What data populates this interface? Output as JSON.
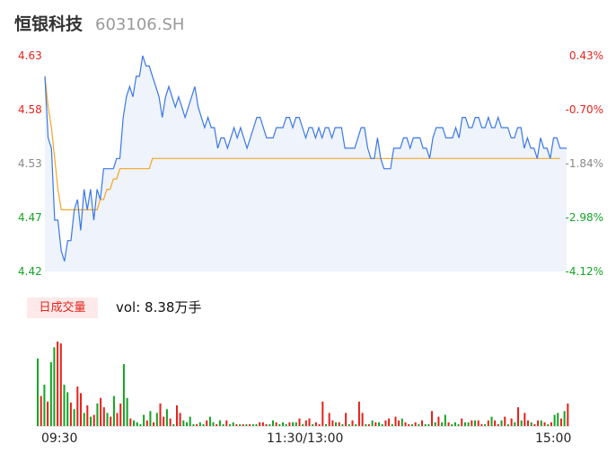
{
  "header": {
    "name": "恒银科技",
    "code": "603106.SH"
  },
  "volume_header": {
    "tag": "日成交量",
    "prefix": "vol: ",
    "value": "8.38万手"
  },
  "colors": {
    "up": "#e5231c",
    "down": "#16a326",
    "price_line": "#3b78e7",
    "avg_line": "#f5a623",
    "fill": "#eef3fc",
    "neutral": "#888888"
  },
  "chart_data": [
    {
      "type": "line",
      "series": [
        {
          "key": "price",
          "values": [
            4.61,
            4.55,
            4.54,
            4.47,
            4.47,
            4.44,
            4.43,
            4.45,
            4.45,
            4.48,
            4.49,
            4.46,
            4.5,
            4.48,
            4.5,
            4.47,
            4.5,
            4.49,
            4.52,
            4.52,
            4.52,
            4.52,
            4.53,
            4.53,
            4.57,
            4.59,
            4.6,
            4.59,
            4.61,
            4.61,
            4.63,
            4.62,
            4.62,
            4.61,
            4.6,
            4.59,
            4.57,
            4.59,
            4.6,
            4.59,
            4.58,
            4.59,
            4.58,
            4.57,
            4.58,
            4.59,
            4.6,
            4.58,
            4.57,
            4.56,
            4.57,
            4.56,
            4.56,
            4.54,
            4.55,
            4.55,
            4.54,
            4.55,
            4.56,
            4.55,
            4.56,
            4.55,
            4.54,
            4.55,
            4.56,
            4.57,
            4.57,
            4.56,
            4.55,
            4.55,
            4.55,
            4.56,
            4.56,
            4.56,
            4.57,
            4.57,
            4.56,
            4.57,
            4.57,
            4.56,
            4.55,
            4.56,
            4.56,
            4.55,
            4.56,
            4.55,
            4.56,
            4.56,
            4.55,
            4.56,
            4.56,
            4.56,
            4.54,
            4.54,
            4.54,
            4.54,
            4.55,
            4.56,
            4.56,
            4.54,
            4.53,
            4.53,
            4.55,
            4.53,
            4.52,
            4.52,
            4.52,
            4.54,
            4.54,
            4.54,
            4.55,
            4.55,
            4.54,
            4.55,
            4.55,
            4.55,
            4.54,
            4.54,
            4.53,
            4.55,
            4.56,
            4.56,
            4.56,
            4.55,
            4.55,
            4.55,
            4.56,
            4.55,
            4.57,
            4.57,
            4.56,
            4.56,
            4.57,
            4.57,
            4.56,
            4.56,
            4.57,
            4.56,
            4.56,
            4.57,
            4.56,
            4.56,
            4.56,
            4.55,
            4.55,
            4.56,
            4.56,
            4.54,
            4.55,
            4.54,
            4.54,
            4.53,
            4.55,
            4.54,
            4.54,
            4.53,
            4.55,
            4.55,
            4.54,
            4.54,
            4.54
          ]
        },
        {
          "key": "average",
          "values": [
            4.61,
            4.58,
            4.56,
            4.53,
            4.5,
            4.48,
            4.48,
            4.48,
            4.48,
            4.48,
            4.48,
            4.48,
            4.48,
            4.48,
            4.48,
            4.48,
            4.48,
            4.49,
            4.49,
            4.5,
            4.5,
            4.51,
            4.51,
            4.52,
            4.52,
            4.52,
            4.52,
            4.52,
            4.52,
            4.52,
            4.52,
            4.52,
            4.52,
            4.53,
            4.53,
            4.53,
            4.53,
            4.53,
            4.53,
            4.53,
            4.53,
            4.53,
            4.53,
            4.53,
            4.53,
            4.53,
            4.53,
            4.53,
            4.53,
            4.53,
            4.53,
            4.53,
            4.53,
            4.53,
            4.53,
            4.53,
            4.53,
            4.53,
            4.53,
            4.53,
            4.53,
            4.53,
            4.53,
            4.53,
            4.53,
            4.53,
            4.53,
            4.53,
            4.53,
            4.53,
            4.53,
            4.53,
            4.53,
            4.53,
            4.53,
            4.53,
            4.53,
            4.53,
            4.53,
            4.53,
            4.53,
            4.53,
            4.53,
            4.53,
            4.53,
            4.53,
            4.53,
            4.53,
            4.53,
            4.53,
            4.53,
            4.53,
            4.53,
            4.53,
            4.53,
            4.53,
            4.53,
            4.53,
            4.53,
            4.53,
            4.53,
            4.53,
            4.53,
            4.53,
            4.53,
            4.53,
            4.53,
            4.53,
            4.53,
            4.53,
            4.53,
            4.53,
            4.53,
            4.53,
            4.53,
            4.53,
            4.53,
            4.53,
            4.53,
            4.53,
            4.53,
            4.53,
            4.53,
            4.53,
            4.53,
            4.53,
            4.53,
            4.53,
            4.53,
            4.53,
            4.53,
            4.53,
            4.53,
            4.53,
            4.53,
            4.53,
            4.53,
            4.53,
            4.53,
            4.53,
            4.53,
            4.53,
            4.53,
            4.53,
            4.53,
            4.53,
            4.53,
            4.53,
            4.53,
            4.53,
            4.53,
            4.53,
            4.53,
            4.53,
            4.53,
            4.53,
            4.53,
            4.53,
            4.53
          ]
        }
      ],
      "ylim": [
        4.42,
        4.63
      ],
      "y_ticks": [
        "4.63",
        "4.58",
        "4.53",
        "4.47",
        "4.42"
      ],
      "y_tick_colors": [
        "up",
        "up",
        "neutral",
        "down",
        "down"
      ],
      "pct_ticks": [
        "0.43%",
        "-0.70%",
        "-1.84%",
        "-2.98%",
        "-4.12%"
      ],
      "pct_tick_colors": [
        "up",
        "up",
        "neutral",
        "down",
        "down"
      ],
      "grid": false
    },
    {
      "type": "bar",
      "title": "日成交量",
      "x_ticks": [
        "09:30",
        "11:30/13:00",
        "15:00"
      ],
      "values": [
        72,
        32,
        44,
        26,
        68,
        84,
        90,
        88,
        44,
        36,
        25,
        18,
        42,
        35,
        14,
        22,
        10,
        12,
        24,
        30,
        20,
        14,
        10,
        32,
        14,
        24,
        66,
        30,
        8,
        6,
        4,
        2,
        12,
        6,
        16,
        4,
        14,
        24,
        10,
        18,
        8,
        2,
        22,
        14,
        6,
        4,
        10,
        2,
        2,
        4,
        2,
        6,
        10,
        4,
        2,
        6,
        2,
        6,
        2,
        4,
        2,
        2,
        2,
        2,
        2,
        2,
        2,
        4,
        4,
        2,
        2,
        6,
        4,
        2,
        4,
        2,
        4,
        4,
        4,
        8,
        2,
        6,
        8,
        2,
        4,
        2,
        26,
        2,
        14,
        6,
        4,
        4,
        2,
        14,
        2,
        6,
        2,
        26,
        14,
        2,
        2,
        6,
        4,
        4,
        2,
        6,
        8,
        2,
        10,
        6,
        8,
        4,
        2,
        2,
        4,
        2,
        6,
        2,
        2,
        16,
        4,
        10,
        4,
        12,
        4,
        2,
        4,
        2,
        8,
        4,
        4,
        6,
        6,
        6,
        2,
        2,
        6,
        10,
        6,
        2,
        6,
        10,
        2,
        8,
        4,
        20,
        6,
        14,
        6,
        4,
        2,
        6,
        6,
        4,
        2,
        4,
        12,
        14,
        8,
        16,
        24
      ],
      "colors": [
        "down",
        "up",
        "down",
        "up",
        "down",
        "down",
        "up",
        "up",
        "down",
        "down",
        "up",
        "down",
        "up",
        "up",
        "down",
        "up",
        "down",
        "up",
        "down",
        "up",
        "up",
        "down",
        "up",
        "down",
        "up",
        "up",
        "down",
        "down",
        "up",
        "down",
        "down",
        "down",
        "down",
        "up",
        "down",
        "up",
        "down",
        "up",
        "up",
        "down",
        "up",
        "down",
        "up",
        "up",
        "down",
        "down",
        "down",
        "down",
        "up",
        "down",
        "down",
        "up",
        "down",
        "down",
        "up",
        "down",
        "down",
        "up",
        "down",
        "down",
        "up",
        "down",
        "up",
        "down",
        "up",
        "down",
        "down",
        "up",
        "up",
        "up",
        "down",
        "down",
        "up",
        "down",
        "down",
        "down",
        "up",
        "down",
        "down",
        "up",
        "down",
        "up",
        "up",
        "down",
        "up",
        "up",
        "up",
        "down",
        "up",
        "up",
        "down",
        "up",
        "down",
        "up",
        "down",
        "up",
        "down",
        "up",
        "up",
        "down",
        "up",
        "down",
        "up",
        "down",
        "down",
        "up",
        "up",
        "down",
        "up",
        "up",
        "down",
        "up",
        "up",
        "down",
        "up",
        "down",
        "up",
        "down",
        "down",
        "up",
        "down",
        "up",
        "down",
        "down",
        "up",
        "down",
        "down",
        "down",
        "up",
        "down",
        "down",
        "up",
        "down",
        "up",
        "up",
        "down",
        "up",
        "down",
        "up",
        "up",
        "down",
        "up",
        "down",
        "up",
        "down",
        "up",
        "down",
        "up",
        "up",
        "down",
        "up",
        "up",
        "down",
        "up",
        "down",
        "up",
        "down",
        "down",
        "up",
        "down",
        "up"
      ]
    }
  ]
}
